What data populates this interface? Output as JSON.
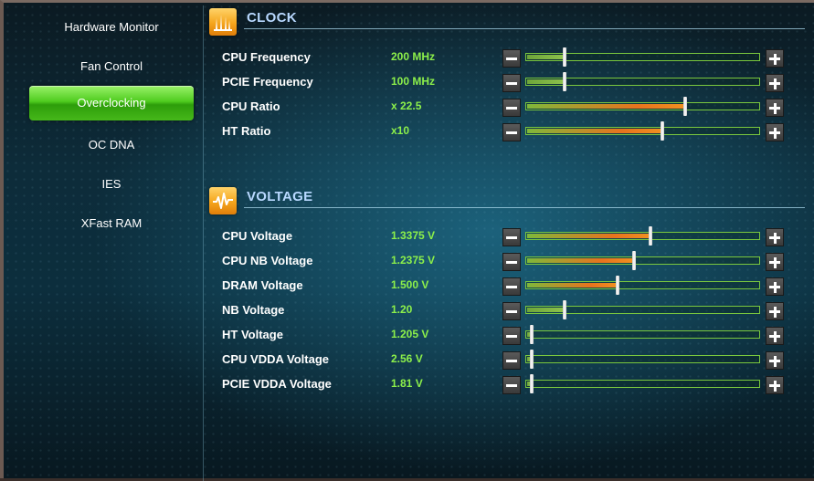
{
  "sidebar": {
    "items": [
      {
        "label": "Hardware Monitor",
        "active": false
      },
      {
        "label": "Fan Control",
        "active": false
      },
      {
        "label": "Overclocking",
        "active": true
      },
      {
        "label": "OC DNA",
        "active": false
      },
      {
        "label": "IES",
        "active": false
      },
      {
        "label": "XFast RAM",
        "active": false
      }
    ]
  },
  "clock": {
    "title": "CLOCK",
    "icon": "clock-bars-icon",
    "rows": [
      {
        "label": "CPU Frequency",
        "value": "200 MHz",
        "level": 0.16,
        "fill": "green"
      },
      {
        "label": "PCIE Frequency",
        "value": "100 MHz",
        "level": 0.16,
        "fill": "green"
      },
      {
        "label": "CPU Ratio",
        "value": "x 22.5",
        "level": 0.68,
        "fill": "orange"
      },
      {
        "label": "HT Ratio",
        "value": "x10",
        "level": 0.58,
        "fill": "orange"
      }
    ]
  },
  "voltage": {
    "title": "VOLTAGE",
    "icon": "voltage-wave-icon",
    "rows": [
      {
        "label": "CPU Voltage",
        "value": "1.3375 V",
        "level": 0.53,
        "fill": "orange"
      },
      {
        "label": "CPU NB Voltage",
        "value": "1.2375 V",
        "level": 0.46,
        "fill": "orange"
      },
      {
        "label": "DRAM Voltage",
        "value": "1.500 V",
        "level": 0.39,
        "fill": "orange"
      },
      {
        "label": "NB Voltage",
        "value": "1.20",
        "level": 0.16,
        "fill": "green"
      },
      {
        "label": "HT Voltage",
        "value": "1.205 V",
        "level": 0.02,
        "fill": "green"
      },
      {
        "label": "CPU VDDA Voltage",
        "value": "2.56 V",
        "level": 0.02,
        "fill": "green"
      },
      {
        "label": "PCIE VDDA Voltage",
        "value": "1.81 V",
        "level": 0.02,
        "fill": "green"
      }
    ]
  },
  "colors": {
    "accent_green": "#4fcc1f",
    "value_green": "#8cf04a",
    "section_title": "#b8d8ff",
    "icon_orange": "#f5a51c"
  }
}
